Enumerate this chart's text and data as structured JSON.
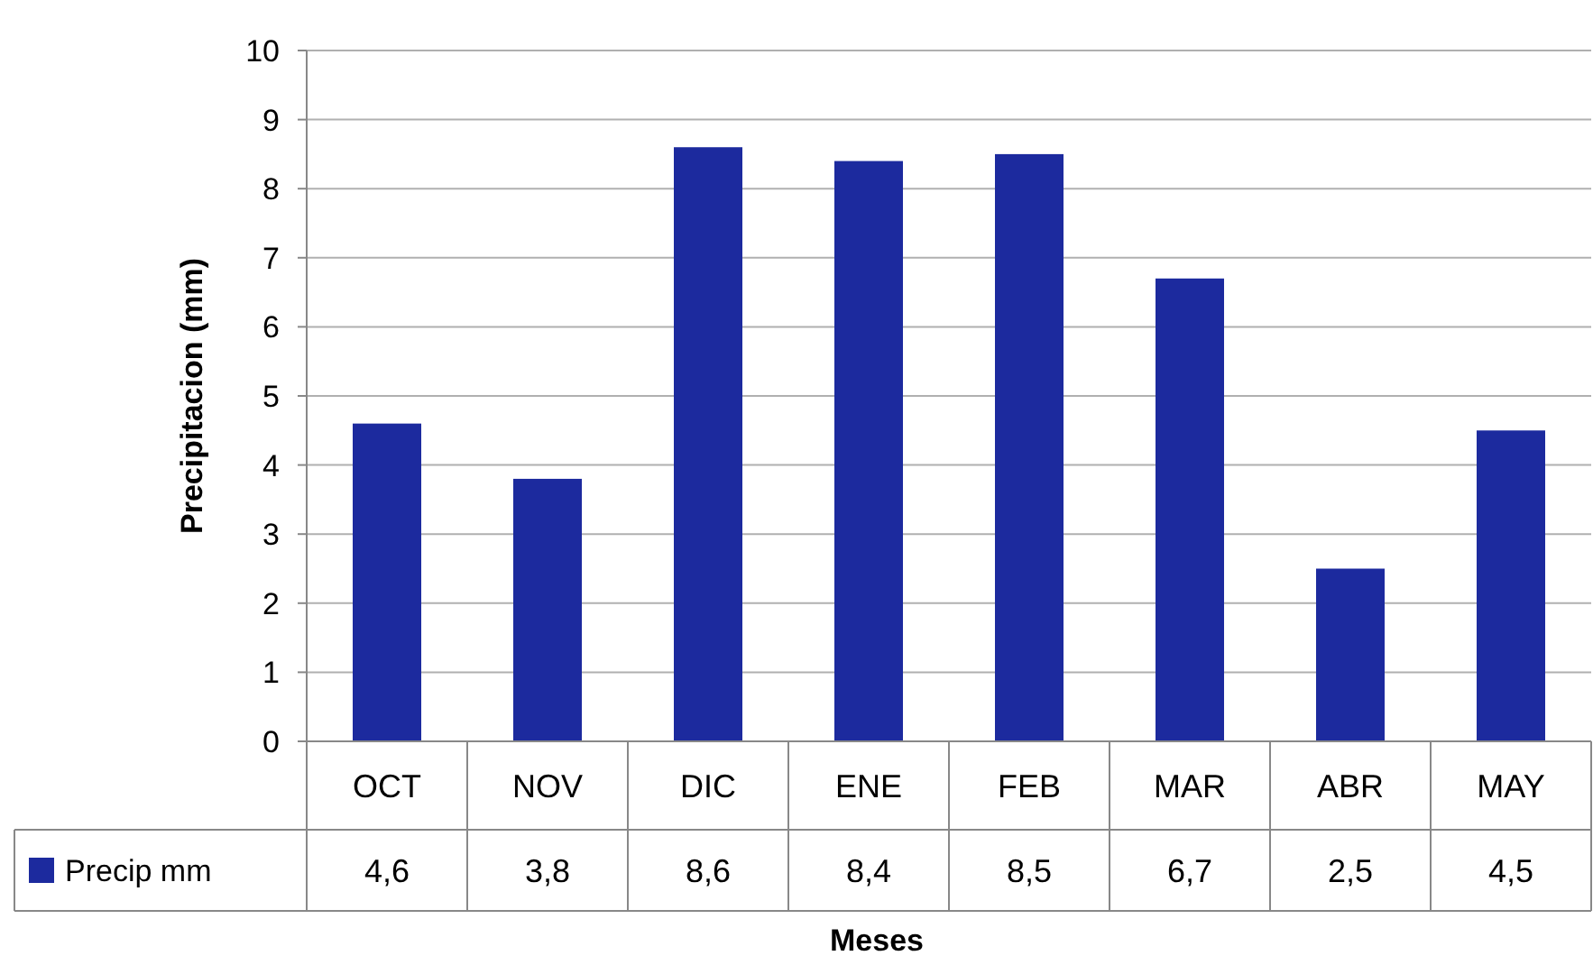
{
  "chart_data": {
    "type": "bar",
    "xlabel": "Meses",
    "ylabel": "Precipitacion (mm)",
    "categories": [
      "OCT",
      "NOV",
      "DIC",
      "ENE",
      "FEB",
      "MAR",
      "ABR",
      "MAY"
    ],
    "series": [
      {
        "name": "Precip mm",
        "color": "#1c2a9e",
        "values": [
          4.6,
          3.8,
          8.6,
          8.4,
          8.5,
          6.7,
          2.5,
          4.5
        ],
        "value_labels": [
          "4,6",
          "3,8",
          "8,6",
          "8,4",
          "8,5",
          "6,7",
          "2,5",
          "4,5"
        ]
      }
    ],
    "ylim": [
      0,
      10
    ],
    "yticks": [
      0,
      1,
      2,
      3,
      4,
      5,
      6,
      7,
      8,
      9,
      10
    ],
    "grid": "y",
    "legend": "bottom"
  }
}
